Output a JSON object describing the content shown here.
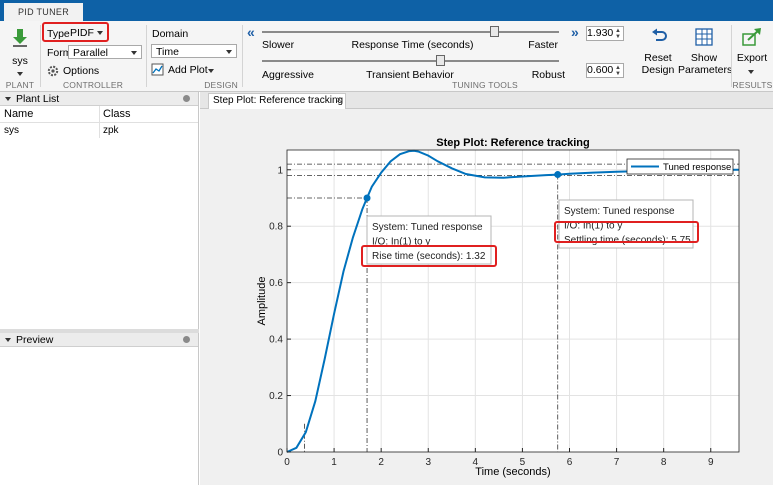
{
  "app": {
    "tab_label": "PID TUNER"
  },
  "toolstrip": {
    "plant": {
      "value": "sys",
      "section": "PLANT"
    },
    "controller": {
      "type_label": "Type",
      "type_value": "PIDF",
      "form_label": "Form",
      "form_value": "Parallel",
      "options_label": "Options",
      "section": "CONTROLLER"
    },
    "design": {
      "domain_label": "Domain",
      "domain_value": "Time",
      "add_plot_label": "Add Plot",
      "section": "DESIGN"
    },
    "tuning": {
      "response_time": {
        "left": "Slower",
        "center": "Response Time (seconds)",
        "right": "Faster",
        "value": "1.930",
        "level": 0.78
      },
      "transient": {
        "left": "Aggressive",
        "center": "Transient Behavior",
        "right": "Robust",
        "value": "0.600",
        "level": 0.6
      },
      "section": "TUNING TOOLS"
    },
    "reset_label": [
      "Reset",
      "Design"
    ],
    "show_label": [
      "Show",
      "Parameters"
    ],
    "export_label": "Export",
    "results_section": "RESULTS"
  },
  "plant_list": {
    "title": "Plant List",
    "columns": [
      "Name",
      "Class"
    ],
    "rows": [
      [
        "sys",
        "zpk"
      ]
    ]
  },
  "preview": {
    "title": "Preview"
  },
  "doc_tab": {
    "label": "Step Plot: Reference tracking"
  },
  "chart_data": {
    "type": "line",
    "title": "Step Plot: Reference tracking",
    "xlabel": "Time (seconds)",
    "ylabel": "Amplitude",
    "xlim": [
      0,
      9.6
    ],
    "ylim": [
      0,
      1.07
    ],
    "xticks": [
      0,
      1,
      2,
      3,
      4,
      5,
      6,
      7,
      8,
      9
    ],
    "yticks": [
      0,
      0.2,
      0.4,
      0.6,
      0.8,
      1
    ],
    "ytick_labels": [
      "0",
      "0.2",
      "0.4",
      "0.6",
      "0.8",
      "1"
    ],
    "legend": "top-right",
    "series": [
      {
        "name": "Tuned response",
        "color": "#0072bd",
        "x": [
          0,
          0.2,
          0.4,
          0.6,
          0.8,
          1.0,
          1.2,
          1.4,
          1.6,
          1.7,
          1.8,
          2.0,
          2.2,
          2.4,
          2.6,
          2.7,
          2.8,
          3.0,
          3.2,
          3.5,
          3.8,
          4.2,
          4.6,
          5.0,
          5.5,
          5.75,
          6.0,
          6.5,
          7.0,
          7.5,
          8.0,
          8.5,
          9.0,
          9.6
        ],
        "y": [
          0,
          0.015,
          0.07,
          0.18,
          0.33,
          0.49,
          0.64,
          0.76,
          0.86,
          0.9,
          0.94,
          0.99,
          1.03,
          1.055,
          1.066,
          1.067,
          1.064,
          1.05,
          1.03,
          1.005,
          0.985,
          0.973,
          0.972,
          0.976,
          0.981,
          0.983,
          0.986,
          0.99,
          0.993,
          0.995,
          0.997,
          0.998,
          0.999,
          1.0
        ]
      }
    ],
    "markers": [
      {
        "x": 1.7,
        "y": 0.9
      },
      {
        "x": 5.75,
        "y": 0.983
      }
    ],
    "settling_band": [
      0.98,
      1.02
    ],
    "rise_marks": [
      0.37,
      1.7
    ],
    "datatips": [
      {
        "lines": [
          "System: Tuned response",
          "I/O: In(1) to y",
          "Rise time (seconds): 1.32"
        ]
      },
      {
        "lines": [
          "System: Tuned response",
          "I/O: In(1) to y",
          "Settling time (seconds): 5.75"
        ]
      }
    ]
  },
  "colors": {
    "accent": "#0e61a6",
    "line": "#0072bd",
    "highlight": "#e02020"
  }
}
